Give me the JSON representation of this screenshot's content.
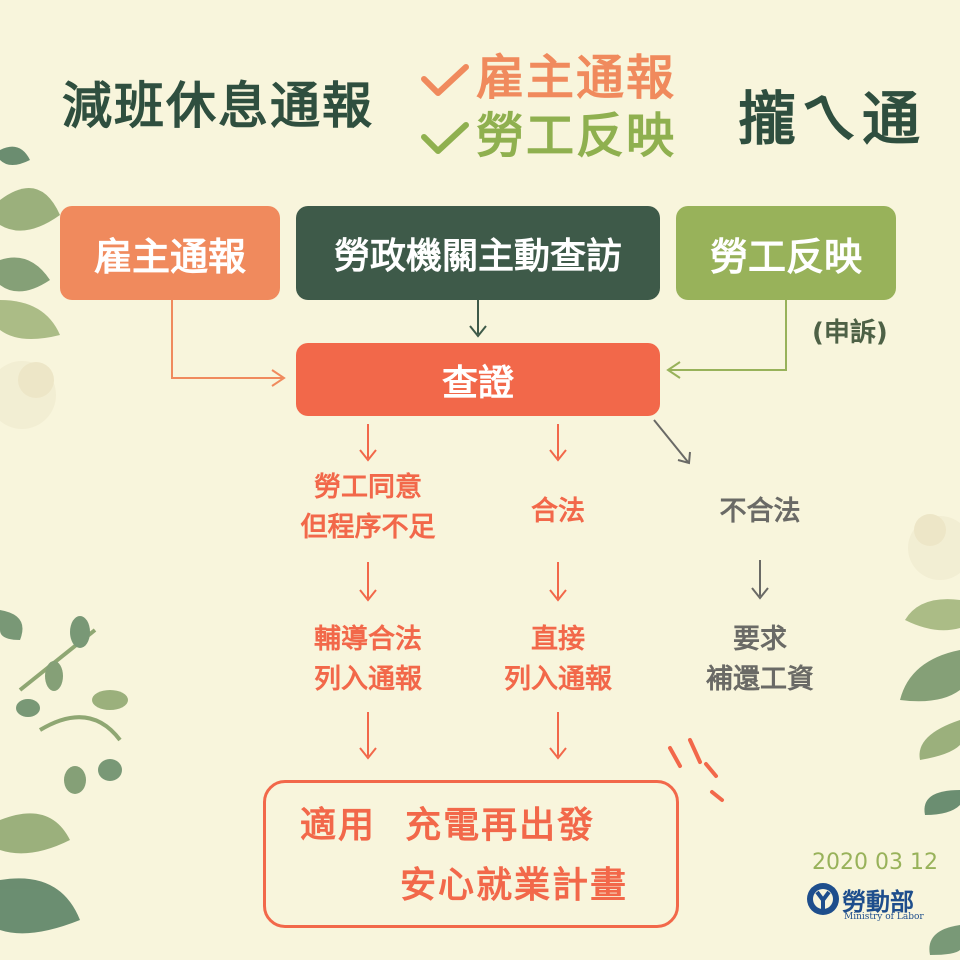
{
  "header": {
    "title": "減班休息通報",
    "check_items": [
      "雇主通報",
      "勞工反映"
    ],
    "slogan": "攏ㄟ通"
  },
  "sources": {
    "employer": "雇主通報",
    "agency": "勞政機關主動查訪",
    "worker": "勞工反映",
    "worker_note": "(申訴)"
  },
  "verify": "查證",
  "branches": {
    "consent": "勞工同意\n但程序不足",
    "legal": "合法",
    "illegal": "不合法",
    "consent_result": "輔導合法\n列入通報",
    "legal_result": "直接\n列入通報",
    "illegal_result": "要求\n補還工資"
  },
  "final": {
    "line1": "適用  充電再出發",
    "line2": "安心就業計畫"
  },
  "footer": {
    "date": "2020 03 12",
    "ministry": "勞動部",
    "ministry_en": "Ministry of Labor"
  },
  "colors": {
    "orange": "#f08a5d",
    "dark_green": "#3e5a49",
    "light_green": "#98b25a",
    "red": "#f2684a",
    "grey": "#6a6a66",
    "background": "#f8f5dc"
  }
}
